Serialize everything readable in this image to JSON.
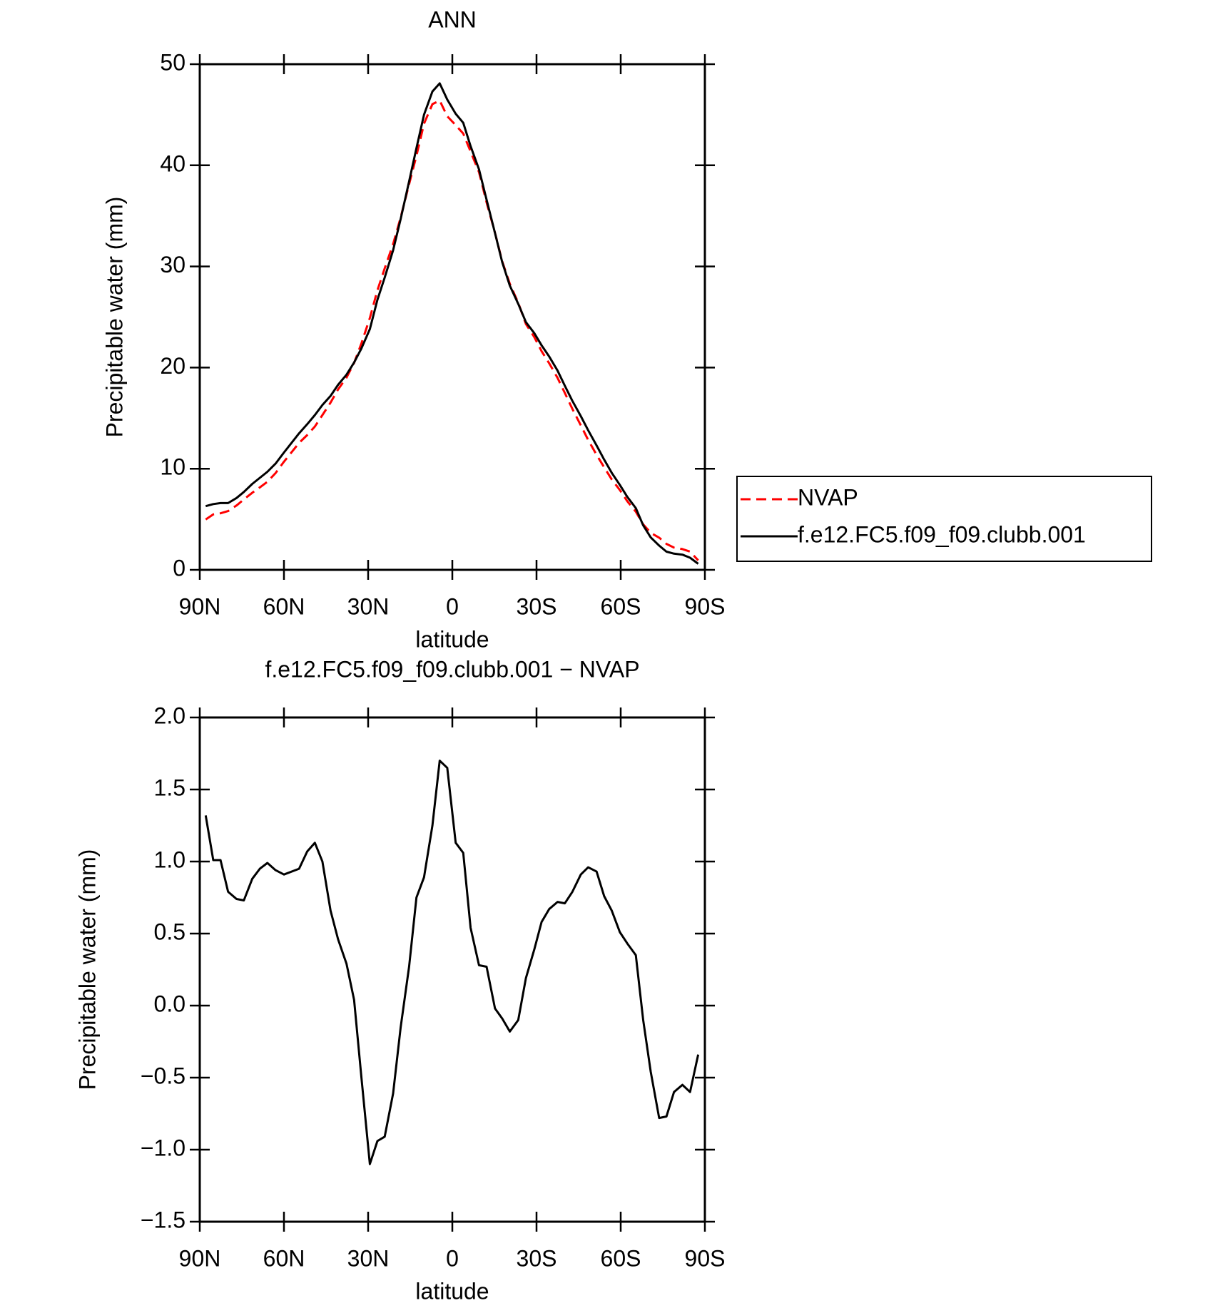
{
  "chart_data": [
    {
      "type": "line",
      "title": "ANN",
      "xlabel": "latitude",
      "ylabel": "Precipitable water (mm)",
      "x": [
        87.9,
        85.2,
        82.6,
        79.9,
        76.9,
        74.3,
        71.3,
        68.6,
        65.9,
        63.0,
        60.0,
        54.6,
        51.7,
        49.0,
        46.3,
        43.4,
        40.7,
        37.7,
        35.0,
        32.4,
        29.4,
        26.7,
        24.1,
        21.1,
        18.4,
        15.4,
        12.8,
        10.1,
        7.1,
        4.5,
        1.8,
        -1.2,
        -3.9,
        -6.5,
        -9.5,
        -12.2,
        -15.2,
        -17.8,
        -20.5,
        -23.5,
        -26.2,
        -29.2,
        -31.8,
        -34.5,
        -37.5,
        -40.1,
        -42.8,
        -45.8,
        -48.4,
        -51.4,
        -54.1,
        -56.8,
        -59.7,
        -62.4,
        -65.4,
        -68.0,
        -70.7,
        -73.7,
        -76.3,
        -79.0,
        -82.0,
        -84.7,
        -87.6
      ],
      "series": [
        {
          "name": "NVAP",
          "color": "#ff0000",
          "line_style": "dashed",
          "values": [
            4.98,
            5.49,
            5.59,
            5.81,
            6.36,
            6.97,
            7.62,
            8.15,
            8.71,
            9.56,
            10.69,
            12.55,
            13.33,
            14.17,
            15.3,
            16.54,
            17.84,
            19.01,
            20.46,
            22.4,
            24.9,
            27.64,
            29.81,
            32.21,
            34.85,
            38.13,
            40.95,
            44.11,
            46.05,
            46.4,
            44.85,
            43.97,
            43.14,
            41.36,
            39.32,
            36.33,
            33.32,
            30.49,
            28.28,
            26.4,
            24.31,
            23.01,
            21.62,
            20.43,
            18.98,
            17.49,
            15.91,
            14.29,
            12.84,
            11.37,
            10.14,
            8.94,
            7.89,
            6.77,
            5.75,
            4.5,
            3.66,
            3.18,
            2.57,
            2.2,
            2.05,
            1.8,
            0.94
          ]
        },
        {
          "name": "f.e12.FC5.f09_f09.clubb.001",
          "color": "#000000",
          "line_style": "solid",
          "values": [
            6.3,
            6.5,
            6.6,
            6.6,
            7.1,
            7.7,
            8.5,
            9.1,
            9.7,
            10.5,
            11.6,
            13.5,
            14.4,
            15.3,
            16.3,
            17.2,
            18.3,
            19.3,
            20.5,
            21.9,
            23.8,
            26.7,
            28.9,
            31.6,
            34.7,
            38.4,
            41.7,
            45.0,
            47.3,
            48.1,
            46.5,
            45.1,
            44.2,
            41.9,
            39.6,
            36.6,
            33.3,
            30.4,
            28.1,
            26.3,
            24.5,
            23.4,
            22.2,
            21.1,
            19.7,
            18.2,
            16.7,
            15.2,
            13.8,
            12.3,
            10.9,
            9.6,
            8.4,
            7.2,
            6.1,
            4.4,
            3.2,
            2.4,
            1.8,
            1.6,
            1.5,
            1.2,
            0.6
          ]
        }
      ],
      "xlim": [
        90,
        -90
      ],
      "xticks": [
        {
          "value": 90,
          "label": "90N"
        },
        {
          "value": 60,
          "label": "60N"
        },
        {
          "value": 30,
          "label": "30N"
        },
        0,
        {
          "value": -30,
          "label": "30S"
        },
        {
          "value": -60,
          "label": "60S"
        },
        {
          "value": -90,
          "label": "90S"
        }
      ],
      "ylim": [
        0,
        50
      ],
      "yticks": [
        0,
        10,
        20,
        30,
        40,
        50
      ],
      "legend": "outside-right"
    },
    {
      "type": "line",
      "title": "f.e12.FC5.f09_f09.clubb.001 − NVAP",
      "xlabel": "latitude",
      "ylabel": "Precipitable water (mm)",
      "x": [
        87.9,
        85.2,
        82.6,
        79.9,
        76.9,
        74.3,
        71.3,
        68.6,
        65.9,
        63.0,
        60.0,
        54.6,
        51.7,
        49.0,
        46.3,
        43.4,
        40.7,
        37.7,
        35.0,
        32.4,
        29.4,
        26.7,
        24.1,
        21.1,
        18.4,
        15.4,
        12.8,
        10.1,
        7.1,
        4.5,
        1.8,
        -1.2,
        -3.9,
        -6.5,
        -9.5,
        -12.2,
        -15.2,
        -17.8,
        -20.5,
        -23.5,
        -26.2,
        -29.2,
        -31.8,
        -34.5,
        -37.5,
        -40.1,
        -42.8,
        -45.8,
        -48.4,
        -51.4,
        -54.1,
        -56.8,
        -59.7,
        -62.4,
        -65.4,
        -68.0,
        -70.7,
        -73.7,
        -76.3,
        -79.0,
        -82.0,
        -84.7,
        -87.6
      ],
      "values": [
        1.32,
        1.01,
        1.01,
        0.79,
        0.74,
        0.73,
        0.88,
        0.95,
        0.99,
        0.94,
        0.91,
        0.95,
        1.07,
        1.13,
        1.0,
        0.66,
        0.46,
        0.29,
        0.04,
        -0.5,
        -1.1,
        -0.94,
        -0.91,
        -0.61,
        -0.15,
        0.27,
        0.75,
        0.89,
        1.25,
        1.7,
        1.65,
        1.13,
        1.06,
        0.54,
        0.28,
        0.27,
        -0.02,
        -0.09,
        -0.18,
        -0.1,
        0.19,
        0.39,
        0.58,
        0.67,
        0.72,
        0.71,
        0.79,
        0.91,
        0.96,
        0.93,
        0.76,
        0.66,
        0.51,
        0.43,
        0.35,
        -0.1,
        -0.46,
        -0.78,
        -0.77,
        -0.6,
        -0.55,
        -0.6,
        -0.34
      ],
      "color": "#000000",
      "xlim": [
        90,
        -90
      ],
      "xticks": [
        {
          "value": 90,
          "label": "90N"
        },
        {
          "value": 60,
          "label": "60N"
        },
        {
          "value": 30,
          "label": "30N"
        },
        0,
        {
          "value": -30,
          "label": "30S"
        },
        {
          "value": -60,
          "label": "60S"
        },
        {
          "value": -90,
          "label": "90S"
        }
      ],
      "ylim": [
        -1.5,
        2.0
      ],
      "yticks": [
        {
          "value": -1.5,
          "label": "−1.5"
        },
        {
          "value": -1.0,
          "label": "−1.0"
        },
        {
          "value": -0.5,
          "label": "−0.5"
        },
        {
          "value": 0,
          "label": "0.0"
        },
        0.5,
        {
          "value": 1.0,
          "label": "1.0"
        },
        1.5,
        {
          "value": 2.0,
          "label": "2.0"
        }
      ]
    }
  ]
}
